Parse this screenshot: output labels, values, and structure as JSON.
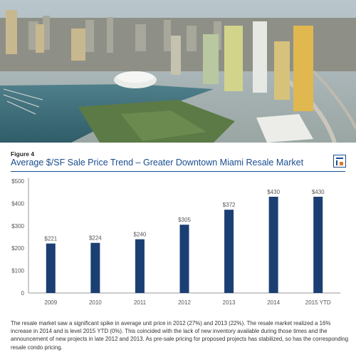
{
  "figure": {
    "label": "Figure 4",
    "title": "Average $/SF Sale Price Trend – Greater Downtown Miami Resale Market"
  },
  "photo": {
    "subject": "aerial-city-skyline"
  },
  "logo": {
    "icon": "brand-logo-icon",
    "colors": {
      "frame": "#1a4d8f",
      "accent": "#e07a1f"
    }
  },
  "chart_data": {
    "type": "bar",
    "title": "Average $/SF Sale Price Trend – Greater Downtown Miami Resale Market",
    "categories": [
      "2009",
      "2010",
      "2011",
      "2012",
      "2013",
      "2014",
      "2015 YTD"
    ],
    "values": [
      221,
      224,
      240,
      305,
      372,
      430,
      430
    ],
    "data_labels": [
      "$221",
      "$224",
      "$240",
      "$305",
      "$372",
      "$430",
      "$430"
    ],
    "ylim": [
      0,
      500
    ],
    "yticks": [
      0,
      100,
      200,
      300,
      400,
      500
    ],
    "ytick_labels": [
      "0",
      "$100",
      "$200",
      "$300",
      "$400",
      "$500"
    ],
    "xlabel": "",
    "ylabel": "",
    "grid": false,
    "legend": "none",
    "bar_color": "#1b3f73"
  },
  "description": "The resale market saw a significant spike in average unit price in 2012 (27%) and 2013 (22%). The resale market realized a 16% increase in 2014 and is level 2015 YTD (0%). This coincided with the lack of new inventory available during those times and the announcement of new projects in late 2012 and 2013. As pre-sale pricing for proposed projects has stabilized, so has the corresponding resale condo pricing."
}
